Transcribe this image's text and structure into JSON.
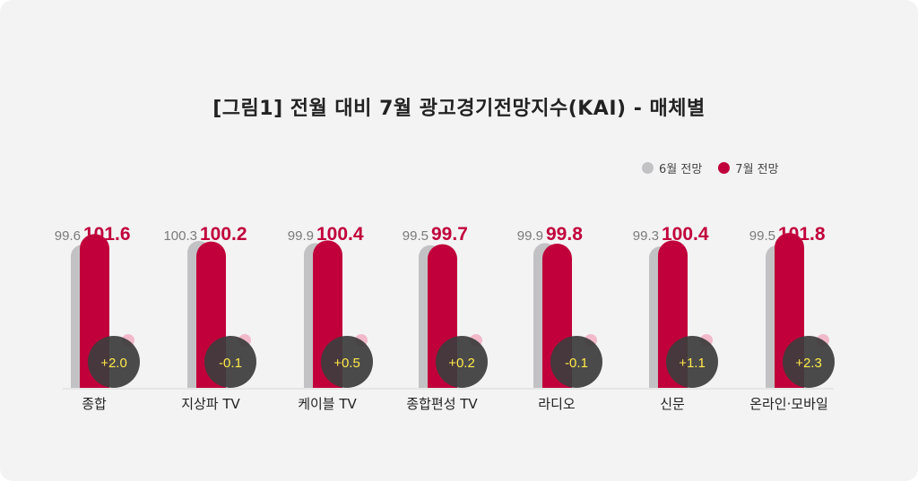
{
  "colors": {
    "june": "#c2c2c4",
    "july": "#c1003b",
    "badge": "#3c3c3c",
    "badge_text": "#ffe94a",
    "pink_dot": "#f2b9cb"
  },
  "chart_data": {
    "type": "bar",
    "title": "[그림1] 전월 대비 7월 광고경기전망지수(KAI) - 매체별",
    "categories": [
      "종합",
      "지상파 TV",
      "케이블 TV",
      "종합편성 TV",
      "라디오",
      "신문",
      "온라인·모바일"
    ],
    "series": [
      {
        "name": "6월 전망",
        "values": [
          99.6,
          100.3,
          99.9,
          99.5,
          99.9,
          99.3,
          99.5
        ],
        "labels": [
          "99.6",
          "100.3",
          "99.9",
          "99.5",
          "99.9",
          "99.3",
          "99.5"
        ]
      },
      {
        "name": "7월 전망",
        "values": [
          101.6,
          100.2,
          100.4,
          99.7,
          99.8,
          100.4,
          101.8
        ],
        "labels": [
          "101.6",
          "100.2",
          "100.4",
          "99.7",
          "99.8",
          "100.4",
          "101.8"
        ]
      }
    ],
    "changes": [
      "+2.0",
      "-0.1",
      "+0.5",
      "+0.2",
      "-0.1",
      "+1.1",
      "+2.3"
    ],
    "legend_position": "top-right"
  }
}
